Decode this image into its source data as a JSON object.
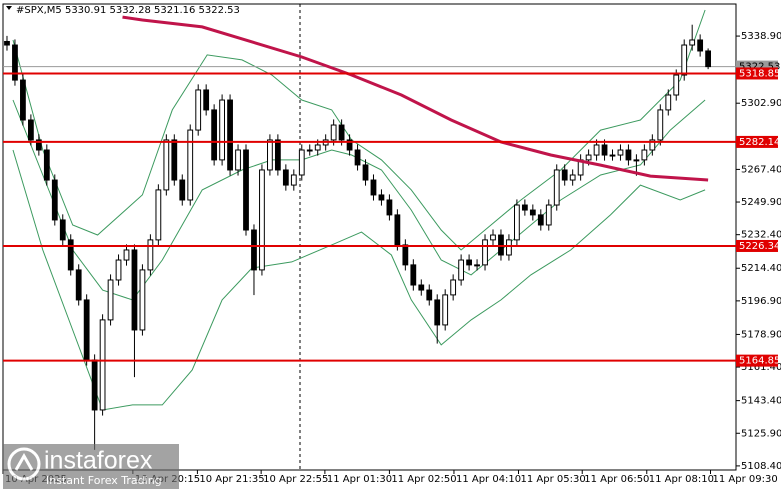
{
  "chart_data": {
    "type": "candlestick",
    "title": "#SPX,M5  5330.91 5332.28 5321.16 5322.53",
    "ylim": [
      5106.2,
      5356.1
    ],
    "xlim": [
      0,
      92
    ],
    "yticks": [
      {
        "value": 5338.9,
        "label": "5338.90"
      },
      {
        "value": 5302.9,
        "label": "5302.90"
      },
      {
        "value": 5267.4,
        "label": "5267.40"
      },
      {
        "value": 5249.9,
        "label": "5249.90"
      },
      {
        "value": 5232.4,
        "label": "5232.40"
      },
      {
        "value": 5214.4,
        "label": "5214.40"
      },
      {
        "value": 5196.9,
        "label": "5196.90"
      },
      {
        "value": 5178.9,
        "label": "5178.90"
      },
      {
        "value": 5161.4,
        "label": "5161.40"
      },
      {
        "value": 5143.4,
        "label": "5143.40"
      },
      {
        "value": 5125.9,
        "label": "5125.90"
      },
      {
        "value": 5108.4,
        "label": "5108.40"
      }
    ],
    "xticks": [
      {
        "value": 0,
        "label": "10 Apr 2025"
      },
      {
        "value": 16.3,
        "label": "10 Apr 20:15"
      },
      {
        "value": 24.4,
        "label": "10 Apr 21:35"
      },
      {
        "value": 32.4,
        "label": "10 Apr 22:55"
      },
      {
        "value": 40.4,
        "label": "11 Apr 01:30"
      },
      {
        "value": 48.5,
        "label": "11 Apr 02:50"
      },
      {
        "value": 56.6,
        "label": "11 Apr 04:10"
      },
      {
        "value": 64.7,
        "label": "11 Apr 05:30"
      },
      {
        "value": 72.7,
        "label": "11 Apr 06:50"
      },
      {
        "value": 80.8,
        "label": "11 Apr 08:10"
      },
      {
        "value": 88.8,
        "label": "11 Apr 09:30"
      }
    ],
    "open": [
      5336.0,
      5334.1,
      5315.3,
      5293.9,
      5283.2,
      5277.8,
      5261.7,
      5240.3,
      5229.6,
      5213.5,
      5197.4,
      5165.2,
      5138.4,
      5186.7,
      5208.1,
      5218.8,
      5224.2,
      5181.3,
      5213.5,
      5229.6,
      5256.4,
      5283.2,
      5261.7,
      5251.0,
      5288.5,
      5310.0,
      5299.3,
      5272.5,
      5304.6,
      5267.1,
      5277.8,
      5234.9,
      5213.5,
      5267.1,
      5283.2,
      5267.1,
      5259.0,
      5264.4,
      5277.8,
      5277.8,
      5280.5,
      5283.2,
      5291.2,
      5283.2,
      5277.8,
      5269.8,
      5261.7,
      5253.7,
      5251.0,
      5243.0,
      5226.9,
      5216.2,
      5205.4,
      5202.7,
      5197.4,
      5184.0,
      5200.1,
      5208.1,
      5218.8,
      5216.2,
      5216.2,
      5229.6,
      5232.2,
      5221.5,
      5229.6,
      5248.3,
      5245.6,
      5243.0,
      5237.6,
      5248.3,
      5267.1,
      5261.7,
      5264.4,
      5272.5,
      5275.1,
      5280.5,
      5275.1,
      5275.1,
      5277.8,
      5272.5,
      5272.5,
      5277.8,
      5283.2,
      5299.3,
      5307.3,
      5318.0,
      5334.1,
      5336.8,
      5330.91
    ],
    "high": [
      5339.0,
      5337.1,
      5318.3,
      5296.9,
      5286.2,
      5280.8,
      5264.7,
      5243.3,
      5232.6,
      5216.5,
      5200.4,
      5168.2,
      5189.7,
      5211.1,
      5221.8,
      5227.2,
      5227.2,
      5216.5,
      5232.6,
      5259.4,
      5286.2,
      5286.2,
      5264.7,
      5291.5,
      5313.0,
      5313.0,
      5302.3,
      5307.6,
      5307.6,
      5280.8,
      5280.8,
      5237.9,
      5270.1,
      5286.2,
      5286.2,
      5270.1,
      5267.4,
      5280.8,
      5280.8,
      5283.5,
      5286.2,
      5294.2,
      5294.2,
      5286.2,
      5280.8,
      5272.8,
      5264.7,
      5256.7,
      5254.0,
      5246.0,
      5229.9,
      5219.2,
      5208.4,
      5205.7,
      5200.4,
      5203.1,
      5211.1,
      5221.8,
      5221.8,
      5219.2,
      5232.6,
      5235.2,
      5235.2,
      5232.6,
      5251.3,
      5251.3,
      5248.6,
      5246.0,
      5251.3,
      5270.1,
      5270.1,
      5267.4,
      5275.5,
      5278.1,
      5283.5,
      5283.5,
      5278.1,
      5280.8,
      5280.8,
      5275.5,
      5280.8,
      5286.2,
      5302.3,
      5310.3,
      5321.0,
      5337.1,
      5345.0,
      5339.8,
      5332.28
    ],
    "low": [
      5331.1,
      5312.3,
      5290.9,
      5280.2,
      5274.8,
      5258.7,
      5237.3,
      5226.6,
      5210.5,
      5194.4,
      5162.2,
      5117.0,
      5135.4,
      5183.7,
      5205.1,
      5215.8,
      5156.0,
      5178.3,
      5210.5,
      5226.6,
      5253.4,
      5258.7,
      5248.0,
      5248.0,
      5285.5,
      5296.3,
      5269.5,
      5269.5,
      5264.1,
      5264.1,
      5231.9,
      5200.0,
      5210.5,
      5264.1,
      5264.1,
      5256.0,
      5256.0,
      5261.4,
      5274.8,
      5274.8,
      5277.5,
      5280.2,
      5280.2,
      5274.8,
      5266.8,
      5258.7,
      5250.7,
      5248.0,
      5240.0,
      5223.9,
      5213.2,
      5202.4,
      5199.7,
      5194.4,
      5174.0,
      5181.0,
      5197.1,
      5205.1,
      5213.2,
      5213.2,
      5213.2,
      5226.6,
      5218.5,
      5218.5,
      5226.6,
      5242.6,
      5240.0,
      5234.6,
      5234.6,
      5245.3,
      5258.7,
      5258.7,
      5261.4,
      5269.5,
      5272.1,
      5272.1,
      5272.1,
      5272.1,
      5269.5,
      5264.0,
      5269.5,
      5274.8,
      5280.2,
      5296.3,
      5304.3,
      5315.0,
      5331.1,
      5327.9,
      5321.16
    ],
    "close": [
      5334.1,
      5315.3,
      5293.9,
      5283.2,
      5277.8,
      5261.7,
      5240.3,
      5229.6,
      5213.5,
      5197.4,
      5165.2,
      5138.4,
      5186.7,
      5208.1,
      5218.8,
      5224.2,
      5181.3,
      5213.5,
      5229.6,
      5256.4,
      5283.2,
      5261.7,
      5251.0,
      5288.5,
      5310.0,
      5299.3,
      5272.5,
      5304.6,
      5267.1,
      5277.8,
      5234.9,
      5213.5,
      5267.1,
      5283.2,
      5267.1,
      5259.0,
      5264.4,
      5277.8,
      5277.8,
      5280.5,
      5283.2,
      5291.2,
      5283.2,
      5277.8,
      5269.8,
      5261.7,
      5253.7,
      5251.0,
      5243.0,
      5226.9,
      5216.2,
      5205.4,
      5202.7,
      5197.4,
      5184.0,
      5200.1,
      5208.1,
      5218.8,
      5216.2,
      5216.2,
      5229.6,
      5232.2,
      5221.5,
      5229.6,
      5248.3,
      5245.6,
      5243.0,
      5237.6,
      5248.3,
      5267.1,
      5261.7,
      5264.4,
      5272.5,
      5275.1,
      5280.5,
      5275.1,
      5275.1,
      5277.8,
      5272.5,
      5272.5,
      5277.8,
      5283.2,
      5299.3,
      5307.3,
      5318.0,
      5334.1,
      5336.8,
      5330.91,
      5322.53
    ],
    "candle_color": "#000000",
    "overlays": [
      {
        "color": "#3c9a5f",
        "line_width": 1,
        "x": [
          1.25,
          5,
          8.75,
          11.875,
          17.5,
          21.25,
          25.625,
          30,
          33.75,
          37.5,
          41.25,
          43.75,
          47.5,
          51.25,
          55,
          57.5,
          61.25,
          65,
          70,
          75,
          80,
          85,
          88.125
        ],
        "values": [
          5336.8,
          5277.8,
          5237.6,
          5232.2,
          5253.7,
          5299.3,
          5328.8,
          5326.1,
          5318.0,
          5304.6,
          5299.3,
          5283.2,
          5272.5,
          5256.4,
          5234.9,
          5224.2,
          5237.6,
          5251.0,
          5267.1,
          5288.5,
          5293.9,
          5315.3,
          5352.9
        ]
      },
      {
        "color": "#3c9a5f",
        "line_width": 1,
        "x": [
          1.25,
          5,
          8.75,
          12.5,
          16.25,
          20,
          25,
          30,
          33.75,
          37.5,
          41.25,
          43.75,
          47.5,
          51.25,
          55,
          58.75,
          62.5,
          66.25,
          70,
          75,
          80,
          83.75,
          88.125
        ],
        "values": [
          5304.6,
          5264.4,
          5224.2,
          5202.7,
          5197.4,
          5218.8,
          5256.4,
          5267.1,
          5272.5,
          5272.5,
          5277.8,
          5275.1,
          5267.1,
          5245.6,
          5218.8,
          5210.8,
          5224.2,
          5237.6,
          5251.0,
          5264.4,
          5269.8,
          5288.5,
          5304.6
        ]
      },
      {
        "color": "#3c9a5f",
        "line_width": 1,
        "x": [
          1.25,
          5,
          8.75,
          12.5,
          16.25,
          20,
          23.75,
          27.5,
          31.25,
          36.25,
          41.25,
          45,
          48.75,
          51.25,
          55,
          58.75,
          62.5,
          66.25,
          71.25,
          76.25,
          80,
          85,
          88.125
        ],
        "values": [
          5277.8,
          5224.2,
          5181.3,
          5138.4,
          5141.1,
          5141.1,
          5159.8,
          5197.4,
          5214.5,
          5217.8,
          5226.9,
          5233.8,
          5221.5,
          5197.4,
          5173.3,
          5186.7,
          5197.4,
          5210.8,
          5224.2,
          5243.0,
          5259.0,
          5251.0,
          5256.4
        ]
      },
      {
        "color": "#c0144a",
        "line_width": 3,
        "x": [
          15,
          17.5,
          25,
          37.5,
          43.75,
          50,
          56.25,
          62.5,
          68.75,
          75,
          81.25,
          88.5
        ],
        "values": [
          5349.1,
          5347.5,
          5343.8,
          5327.7,
          5318.0,
          5307.3,
          5293.9,
          5282.1,
          5275.1,
          5269.7,
          5263.8,
          5261.7
        ]
      }
    ],
    "levels": {
      "color": "#e00000",
      "values": [
        5318.85,
        5282.14,
        5226.34,
        5164.85
      ]
    },
    "last_price": {
      "color": "#9a9a9a",
      "value": 5322.53
    },
    "watermark_title": "instaforex",
    "watermark_subtitle": "Instant Forex Trading"
  }
}
